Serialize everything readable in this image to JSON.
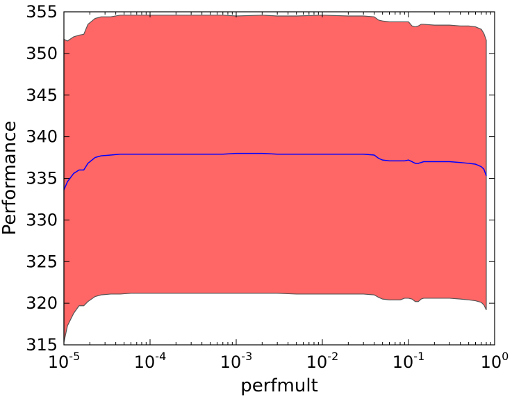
{
  "chart_data": {
    "type": "area",
    "xlabel": "perfmult",
    "ylabel": "Performance",
    "x_scale": "log",
    "xlim": [
      1e-05,
      1
    ],
    "ylim": [
      315,
      355
    ],
    "grid": false,
    "legend": "none",
    "x_ticks": [
      {
        "value": 1e-05,
        "base": "10",
        "exp": "-5"
      },
      {
        "value": 0.0001,
        "base": "10",
        "exp": "-4"
      },
      {
        "value": 0.001,
        "base": "10",
        "exp": "-3"
      },
      {
        "value": 0.01,
        "base": "10",
        "exp": "-2"
      },
      {
        "value": 0.1,
        "base": "10",
        "exp": "-1"
      },
      {
        "value": 1,
        "base": "10",
        "exp": "0"
      }
    ],
    "y_ticks": [
      "315",
      "320",
      "325",
      "330",
      "335",
      "340",
      "345",
      "350",
      "355"
    ],
    "colors": {
      "band_fill": "#ff6666",
      "band_edge": "#555555",
      "mean_line": "#0000ff"
    },
    "x": [
      1e-05,
      1.1e-05,
      1.3e-05,
      1.5e-05,
      1.7e-05,
      1.9e-05,
      2.3e-05,
      2.7e-05,
      3.5e-05,
      4.5e-05,
      6e-05,
      8e-05,
      0.0001,
      0.0002,
      0.0004,
      0.0007,
      0.001,
      0.002,
      0.003,
      0.005,
      0.01,
      0.02,
      0.03,
      0.04,
      0.045,
      0.05,
      0.06,
      0.07,
      0.08,
      0.09,
      0.1,
      0.11,
      0.12,
      0.13,
      0.14,
      0.15,
      0.2,
      0.3,
      0.4,
      0.5,
      0.6,
      0.7,
      0.75,
      0.8
    ],
    "series": [
      {
        "role": "upper",
        "values": [
          351.7,
          351.5,
          352.0,
          352.2,
          352.3,
          353.5,
          354.2,
          354.4,
          354.4,
          354.6,
          354.6,
          354.6,
          354.6,
          354.6,
          354.6,
          354.6,
          354.5,
          354.6,
          354.5,
          354.5,
          354.6,
          354.5,
          354.5,
          354.4,
          354.0,
          353.9,
          353.8,
          353.8,
          353.8,
          353.8,
          353.8,
          353.3,
          353.2,
          353.3,
          353.5,
          353.5,
          353.4,
          353.4,
          353.3,
          353.3,
          353.2,
          352.9,
          352.4,
          351.6
        ]
      },
      {
        "role": "mean",
        "values": [
          333.6,
          334.6,
          335.6,
          336.0,
          336.0,
          336.8,
          337.5,
          337.7,
          337.8,
          337.9,
          337.9,
          337.9,
          337.9,
          337.9,
          337.9,
          337.9,
          338.0,
          338.0,
          337.9,
          337.9,
          337.9,
          337.9,
          337.9,
          337.8,
          337.4,
          337.2,
          337.1,
          337.1,
          337.1,
          337.1,
          337.2,
          337.0,
          336.8,
          336.8,
          336.9,
          337.0,
          337.0,
          337.0,
          336.9,
          336.8,
          336.7,
          336.4,
          336.1,
          335.3
        ]
      },
      {
        "role": "lower",
        "values": [
          315.3,
          317.3,
          318.8,
          319.7,
          319.7,
          320.2,
          320.8,
          321.0,
          321.1,
          321.1,
          321.2,
          321.2,
          321.2,
          321.2,
          321.2,
          321.2,
          321.2,
          321.2,
          321.2,
          321.1,
          321.1,
          321.1,
          321.1,
          321.0,
          320.7,
          320.5,
          320.4,
          320.4,
          320.4,
          320.6,
          320.6,
          320.5,
          320.2,
          320.2,
          320.5,
          320.6,
          320.6,
          320.6,
          320.5,
          320.4,
          320.3,
          320.1,
          319.8,
          319.2
        ]
      }
    ]
  }
}
